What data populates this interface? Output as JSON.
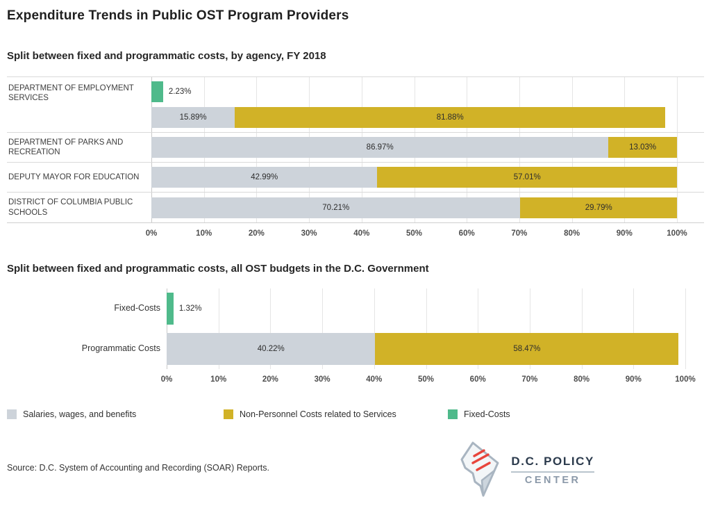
{
  "title": "Expenditure Trends in Public OST Program Providers",
  "colors": {
    "gray": "#cdd3da",
    "yellow": "#d1b227",
    "green": "#4fba8b"
  },
  "legend": [
    {
      "label": "Salaries, wages, and benefits",
      "color": "gray"
    },
    {
      "label": "Non-Personnel Costs related to Services",
      "color": "yellow"
    },
    {
      "label": "Fixed-Costs",
      "color": "green"
    }
  ],
  "source": "Source: D.C. System of Accounting and Recording (SOAR) Reports.",
  "logo": {
    "line1": "D.C. POLICY",
    "line2": "CENTER"
  },
  "chart_data": [
    {
      "type": "bar",
      "subtitle": "Split between fixed and programmatic costs, by agency, FY 2018",
      "orientation": "horizontal-stacked",
      "xlim": [
        0,
        100
      ],
      "axis_ticks": [
        "0%",
        "10%",
        "20%",
        "30%",
        "40%",
        "50%",
        "60%",
        "70%",
        "80%",
        "90%",
        "100%"
      ],
      "rows": [
        {
          "category": "DEPARTMENT OF EMPLOYMENT SERVICES",
          "bars": [
            [
              {
                "series": "Fixed-Costs",
                "color": "green",
                "value": 2.23,
                "label": "2.23%"
              }
            ],
            [
              {
                "series": "Salaries, wages, and benefits",
                "color": "gray",
                "value": 15.89,
                "label": "15.89%"
              },
              {
                "series": "Non-Personnel Costs related to Services",
                "color": "yellow",
                "value": 81.88,
                "label": "81.88%"
              }
            ]
          ]
        },
        {
          "category": "DEPARTMENT OF PARKS AND RECREATION",
          "bars": [
            [
              {
                "series": "Salaries, wages, and benefits",
                "color": "gray",
                "value": 86.97,
                "label": "86.97%"
              },
              {
                "series": "Non-Personnel Costs related to Services",
                "color": "yellow",
                "value": 13.03,
                "label": "13.03%"
              }
            ]
          ]
        },
        {
          "category": "DEPUTY MAYOR FOR EDUCATION",
          "bars": [
            [
              {
                "series": "Salaries, wages, and benefits",
                "color": "gray",
                "value": 42.99,
                "label": "42.99%"
              },
              {
                "series": "Non-Personnel Costs related to Services",
                "color": "yellow",
                "value": 57.01,
                "label": "57.01%"
              }
            ]
          ]
        },
        {
          "category": "DISTRICT OF COLUMBIA PUBLIC SCHOOLS",
          "bars": [
            [
              {
                "series": "Salaries, wages, and benefits",
                "color": "gray",
                "value": 70.21,
                "label": "70.21%"
              },
              {
                "series": "Non-Personnel Costs related to Services",
                "color": "yellow",
                "value": 29.79,
                "label": "29.79%"
              }
            ]
          ]
        }
      ]
    },
    {
      "type": "bar",
      "subtitle": "Split between fixed and programmatic costs, all OST budgets in the D.C. Government",
      "orientation": "horizontal-stacked",
      "xlim": [
        0,
        100
      ],
      "axis_ticks": [
        "0%",
        "10%",
        "20%",
        "30%",
        "40%",
        "50%",
        "60%",
        "70%",
        "80%",
        "90%",
        "100%"
      ],
      "rows": [
        {
          "category": "Fixed-Costs",
          "bars": [
            [
              {
                "series": "Fixed-Costs",
                "color": "green",
                "value": 1.32,
                "label": "1.32%"
              }
            ]
          ]
        },
        {
          "category": "Programmatic Costs",
          "bars": [
            [
              {
                "series": "Salaries, wages, and benefits",
                "color": "gray",
                "value": 40.22,
                "label": "40.22%"
              },
              {
                "series": "Non-Personnel Costs related to Services",
                "color": "yellow",
                "value": 58.47,
                "label": "58.47%"
              }
            ]
          ]
        }
      ]
    }
  ]
}
